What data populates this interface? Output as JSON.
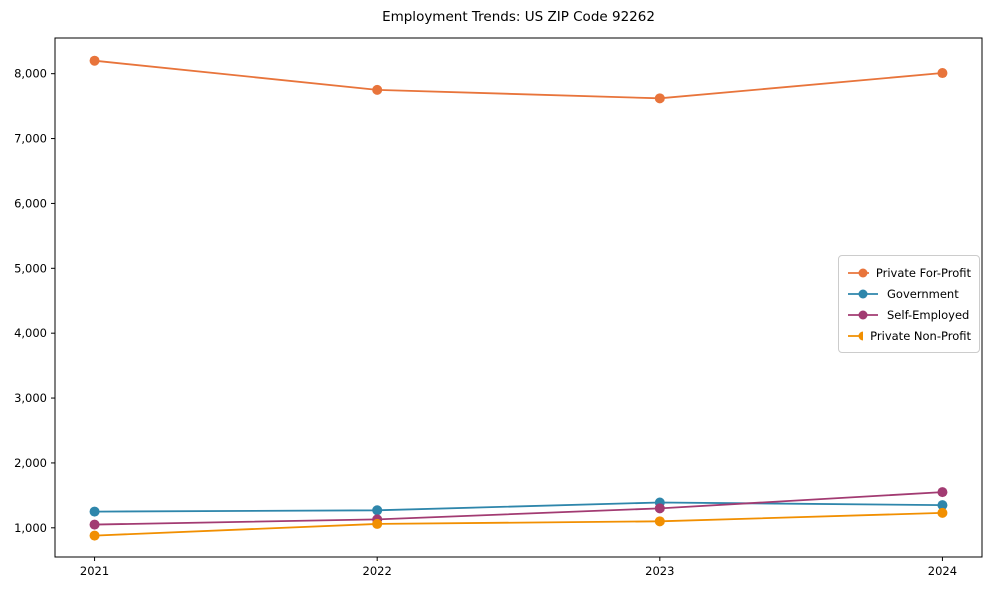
{
  "figure": {
    "title": "Employment Trends: US ZIP Code 92262"
  },
  "chart_data": {
    "type": "line",
    "title": "Employment Trends: US ZIP Code 92262",
    "categories": [
      2021,
      2022,
      2023,
      2024
    ],
    "series": [
      {
        "name": "Private For-Profit",
        "color": "#E8743B",
        "values": [
          8200,
          7750,
          7620,
          8010
        ]
      },
      {
        "name": "Government",
        "color": "#2E86AB",
        "values": [
          1250,
          1270,
          1390,
          1350
        ]
      },
      {
        "name": "Self-Employed",
        "color": "#A23B72",
        "values": [
          1050,
          1130,
          1300,
          1550
        ]
      },
      {
        "name": "Private Non-Profit",
        "color": "#F18F01",
        "values": [
          880,
          1060,
          1100,
          1230
        ]
      }
    ],
    "xlabel": "",
    "ylabel": "",
    "xlim": [
      2020.86,
      2024.14
    ],
    "ylim": [
      550,
      8550
    ],
    "yticks": [
      1000,
      2000,
      3000,
      4000,
      5000,
      6000,
      7000,
      8000
    ],
    "ytick_labels": [
      "1,000",
      "2,000",
      "3,000",
      "4,000",
      "5,000",
      "6,000",
      "7,000",
      "8,000"
    ],
    "xtick_labels": [
      "2021",
      "2022",
      "2023",
      "2024"
    ],
    "grid": false,
    "legend_position": "center right",
    "marker": "circle",
    "axis_color": "#000000",
    "plot_background": "#ffffff"
  }
}
